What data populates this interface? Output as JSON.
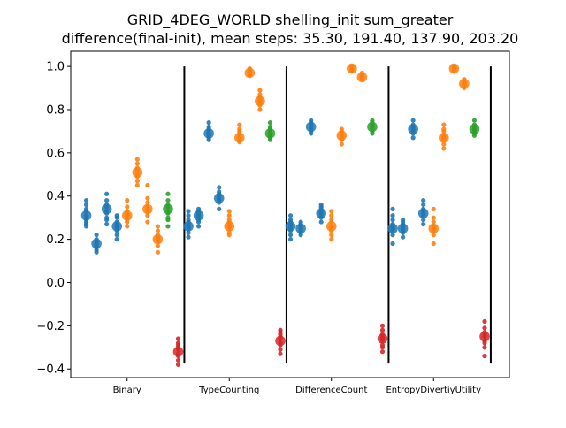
{
  "chart_data": {
    "type": "scatter",
    "title_line1": "GRID_4DEG_WORLD shelling_init sum_greater",
    "title_line2": "difference(final-init), mean steps: 35.30, 191.40, 137.90, 203.20",
    "xlabel": "",
    "ylabel": "",
    "ylim": [
      -0.44,
      1.07
    ],
    "yticks": [
      -0.4,
      -0.2,
      0.0,
      0.2,
      0.4,
      0.6,
      0.8,
      1.0
    ],
    "ytick_labels": [
      "−0.4",
      "−0.2",
      "0.0",
      "0.2",
      "0.4",
      "0.6",
      "0.8",
      "1.0"
    ],
    "categories": [
      "Binary",
      "TypeCounting",
      "DifferenceCount",
      "EntropyDivertiyUtility"
    ],
    "series_colors": {
      "blue": "#1f77b4",
      "orange": "#ff7f0e",
      "green": "#2ca02c",
      "red": "#d62728"
    },
    "groups": [
      {
        "category": "Binary",
        "points": [
          {
            "pos": 0.1,
            "color": "blue",
            "mean": 0.31,
            "samples": [
              0.38,
              0.36,
              0.34,
              0.33,
              0.31,
              0.3,
              0.29,
              0.28,
              0.27,
              0.26
            ]
          },
          {
            "pos": 0.2,
            "color": "blue",
            "mean": 0.18,
            "samples": [
              0.22,
              0.2,
              0.19,
              0.18,
              0.17,
              0.16,
              0.15,
              0.14
            ]
          },
          {
            "pos": 0.3,
            "color": "blue",
            "mean": 0.34,
            "samples": [
              0.41,
              0.38,
              0.36,
              0.35,
              0.33,
              0.32,
              0.3,
              0.29,
              0.27
            ]
          },
          {
            "pos": 0.4,
            "color": "blue",
            "mean": 0.26,
            "samples": [
              0.31,
              0.3,
              0.28,
              0.27,
              0.26,
              0.25,
              0.24,
              0.22,
              0.2
            ]
          },
          {
            "pos": 0.5,
            "color": "orange",
            "mean": 0.31,
            "samples": [
              0.38,
              0.35,
              0.33,
              0.32,
              0.31,
              0.3,
              0.29,
              0.28,
              0.26
            ]
          },
          {
            "pos": 0.6,
            "color": "orange",
            "mean": 0.51,
            "samples": [
              0.57,
              0.55,
              0.53,
              0.52,
              0.5,
              0.49,
              0.47,
              0.45
            ]
          },
          {
            "pos": 0.7,
            "color": "orange",
            "mean": 0.34,
            "samples": [
              0.45,
              0.39,
              0.37,
              0.35,
              0.34,
              0.33,
              0.31,
              0.28
            ]
          },
          {
            "pos": 0.8,
            "color": "orange",
            "mean": 0.2,
            "samples": [
              0.26,
              0.24,
              0.22,
              0.21,
              0.2,
              0.19,
              0.17,
              0.14
            ]
          },
          {
            "pos": 0.9,
            "color": "green",
            "mean": 0.34,
            "samples": [
              0.41,
              0.38,
              0.36,
              0.35,
              0.33,
              0.32,
              0.3,
              0.29,
              0.26
            ]
          },
          {
            "pos": 1.0,
            "color": "red",
            "mean": -0.32,
            "samples": [
              -0.26,
              -0.28,
              -0.29,
              -0.3,
              -0.31,
              -0.33,
              -0.34,
              -0.36,
              -0.38
            ]
          }
        ]
      },
      {
        "category": "TypeCounting",
        "points": [
          {
            "pos": 0.1,
            "color": "blue",
            "mean": 0.26,
            "samples": [
              0.33,
              0.31,
              0.29,
              0.28,
              0.27,
              0.26,
              0.25,
              0.23,
              0.21
            ]
          },
          {
            "pos": 0.2,
            "color": "blue",
            "mean": 0.31,
            "samples": [
              0.34,
              0.33,
              0.32,
              0.31,
              0.3,
              0.29,
              0.28,
              0.26
            ]
          },
          {
            "pos": 0.3,
            "color": "blue",
            "mean": 0.69,
            "samples": [
              0.74,
              0.72,
              0.71,
              0.7,
              0.69,
              0.68,
              0.67,
              0.66
            ]
          },
          {
            "pos": 0.4,
            "color": "blue",
            "mean": 0.39,
            "samples": [
              0.44,
              0.42,
              0.41,
              0.4,
              0.39,
              0.38,
              0.37,
              0.34
            ]
          },
          {
            "pos": 0.5,
            "color": "orange",
            "mean": 0.26,
            "samples": [
              0.33,
              0.31,
              0.29,
              0.28,
              0.27,
              0.26,
              0.25,
              0.23,
              0.22
            ]
          },
          {
            "pos": 0.6,
            "color": "orange",
            "mean": 0.67,
            "samples": [
              0.73,
              0.71,
              0.7,
              0.69,
              0.68,
              0.67,
              0.66,
              0.65
            ]
          },
          {
            "pos": 0.7,
            "color": "orange",
            "mean": 0.97,
            "samples": [
              0.99,
              0.985,
              0.98,
              0.975,
              0.97,
              0.965,
              0.96
            ]
          },
          {
            "pos": 0.8,
            "color": "orange",
            "mean": 0.84,
            "samples": [
              0.89,
              0.87,
              0.86,
              0.85,
              0.84,
              0.83,
              0.82,
              0.8
            ]
          },
          {
            "pos": 0.9,
            "color": "green",
            "mean": 0.69,
            "samples": [
              0.74,
              0.72,
              0.71,
              0.7,
              0.69,
              0.68,
              0.67,
              0.66
            ]
          },
          {
            "pos": 1.0,
            "color": "red",
            "mean": -0.27,
            "samples": [
              -0.22,
              -0.23,
              -0.24,
              -0.25,
              -0.26,
              -0.28,
              -0.29,
              -0.31,
              -0.33
            ]
          }
        ]
      },
      {
        "category": "DifferenceCount",
        "points": [
          {
            "pos": 0.1,
            "color": "blue",
            "mean": 0.26,
            "samples": [
              0.31,
              0.29,
              0.28,
              0.27,
              0.26,
              0.25,
              0.24,
              0.22,
              0.2
            ]
          },
          {
            "pos": 0.2,
            "color": "blue",
            "mean": 0.25,
            "samples": [
              0.28,
              0.27,
              0.26,
              0.25,
              0.24,
              0.23,
              0.22
            ]
          },
          {
            "pos": 0.3,
            "color": "blue",
            "mean": 0.72,
            "samples": [
              0.75,
              0.74,
              0.73,
              0.72,
              0.71,
              0.7,
              0.69
            ]
          },
          {
            "pos": 0.4,
            "color": "blue",
            "mean": 0.32,
            "samples": [
              0.36,
              0.35,
              0.34,
              0.33,
              0.32,
              0.31,
              0.3,
              0.28
            ]
          },
          {
            "pos": 0.5,
            "color": "orange",
            "mean": 0.26,
            "samples": [
              0.33,
              0.31,
              0.29,
              0.28,
              0.26,
              0.25,
              0.24,
              0.22,
              0.2
            ]
          },
          {
            "pos": 0.6,
            "color": "orange",
            "mean": 0.68,
            "samples": [
              0.71,
              0.7,
              0.69,
              0.68,
              0.67,
              0.66,
              0.64
            ]
          },
          {
            "pos": 0.7,
            "color": "orange",
            "mean": 0.99,
            "samples": [
              1.0,
              0.995,
              0.99,
              0.985,
              0.98
            ]
          },
          {
            "pos": 0.8,
            "color": "orange",
            "mean": 0.95,
            "samples": [
              0.97,
              0.96,
              0.955,
              0.95,
              0.945,
              0.94
            ]
          },
          {
            "pos": 0.9,
            "color": "green",
            "mean": 0.72,
            "samples": [
              0.75,
              0.74,
              0.73,
              0.72,
              0.71,
              0.7,
              0.69
            ]
          },
          {
            "pos": 1.0,
            "color": "red",
            "mean": -0.26,
            "samples": [
              -0.2,
              -0.22,
              -0.24,
              -0.25,
              -0.26,
              -0.27,
              -0.29,
              -0.3,
              -0.32
            ]
          }
        ]
      },
      {
        "category": "EntropyDivertiyUtility",
        "points": [
          {
            "pos": 0.1,
            "color": "blue",
            "mean": 0.25,
            "samples": [
              0.34,
              0.31,
              0.29,
              0.27,
              0.26,
              0.25,
              0.24,
              0.22,
              0.18
            ]
          },
          {
            "pos": 0.2,
            "color": "blue",
            "mean": 0.25,
            "samples": [
              0.29,
              0.28,
              0.27,
              0.26,
              0.25,
              0.24,
              0.23,
              0.21
            ]
          },
          {
            "pos": 0.3,
            "color": "blue",
            "mean": 0.71,
            "samples": [
              0.75,
              0.73,
              0.72,
              0.71,
              0.7,
              0.69,
              0.67
            ]
          },
          {
            "pos": 0.4,
            "color": "blue",
            "mean": 0.32,
            "samples": [
              0.38,
              0.36,
              0.34,
              0.33,
              0.32,
              0.31,
              0.29,
              0.27
            ]
          },
          {
            "pos": 0.5,
            "color": "orange",
            "mean": 0.25,
            "samples": [
              0.34,
              0.3,
              0.28,
              0.26,
              0.25,
              0.24,
              0.22,
              0.18
            ]
          },
          {
            "pos": 0.6,
            "color": "orange",
            "mean": 0.67,
            "samples": [
              0.73,
              0.71,
              0.7,
              0.68,
              0.67,
              0.66,
              0.64,
              0.62
            ]
          },
          {
            "pos": 0.7,
            "color": "orange",
            "mean": 0.99,
            "samples": [
              1.0,
              0.995,
              0.99,
              0.985,
              0.98
            ]
          },
          {
            "pos": 0.8,
            "color": "orange",
            "mean": 0.92,
            "samples": [
              0.94,
              0.93,
              0.925,
              0.92,
              0.915,
              0.91,
              0.9
            ]
          },
          {
            "pos": 0.9,
            "color": "green",
            "mean": 0.71,
            "samples": [
              0.75,
              0.73,
              0.72,
              0.71,
              0.7,
              0.69,
              0.68
            ]
          },
          {
            "pos": 1.0,
            "color": "red",
            "mean": -0.25,
            "samples": [
              -0.18,
              -0.21,
              -0.23,
              -0.24,
              -0.25,
              -0.27,
              -0.28,
              -0.3,
              -0.34
            ]
          }
        ]
      }
    ]
  }
}
